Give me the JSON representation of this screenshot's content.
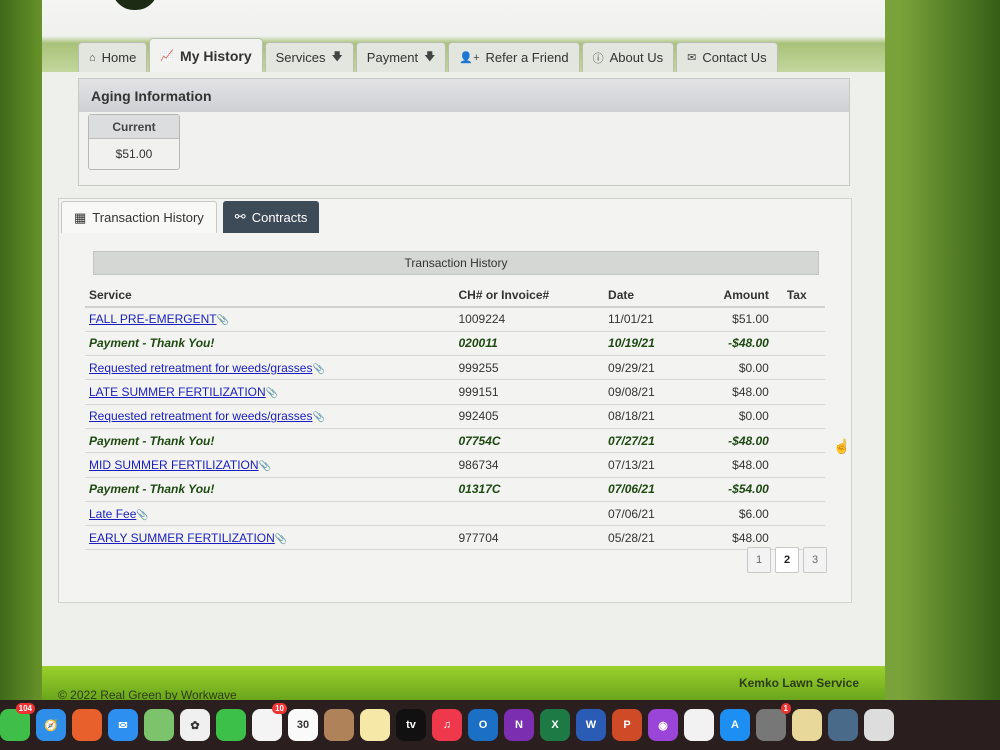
{
  "nav": [
    {
      "label": "Home",
      "icon": "home-icon",
      "glyph": "⌂"
    },
    {
      "label": "My History",
      "icon": "chart-line-icon",
      "glyph": "📈",
      "active": true
    },
    {
      "label": "Services",
      "icon": "arrow-down-icon",
      "glyph": "🡇",
      "after": true
    },
    {
      "label": "Payment",
      "icon": "arrow-down-icon",
      "glyph": "🡇",
      "after": true
    },
    {
      "label": "Refer a Friend",
      "icon": "user-plus-icon",
      "glyph": "👤+"
    },
    {
      "label": "About Us",
      "icon": "info-icon",
      "glyph": "ⓘ"
    },
    {
      "label": "Contact Us",
      "icon": "envelope-icon",
      "glyph": "✉"
    }
  ],
  "aging": {
    "title": "Aging Information",
    "current_label": "Current",
    "current_value": "$51.00"
  },
  "tabs": [
    {
      "label": "Transaction History",
      "icon": "calendar-icon",
      "glyph": "▦"
    },
    {
      "label": "Contracts",
      "icon": "link-icon",
      "glyph": "⚯"
    }
  ],
  "history": {
    "title": "Transaction History",
    "columns": [
      "Service",
      "CH# or Invoice#",
      "Date",
      "Amount",
      "Tax"
    ],
    "rows": [
      {
        "service": "FALL PRE-EMERGENT",
        "invoice": "1009224",
        "date": "11/01/21",
        "amount": "$51.00",
        "tax": "",
        "type": "link"
      },
      {
        "service": "Payment - Thank You!",
        "invoice": "020011",
        "date": "10/19/21",
        "amount": "-$48.00",
        "tax": "",
        "type": "payment"
      },
      {
        "service": "Requested retreatment for weeds/grasses",
        "invoice": "999255",
        "date": "09/29/21",
        "amount": "$0.00",
        "tax": "",
        "type": "link"
      },
      {
        "service": "LATE SUMMER FERTILIZATION",
        "invoice": "999151",
        "date": "09/08/21",
        "amount": "$48.00",
        "tax": "",
        "type": "link"
      },
      {
        "service": "Requested retreatment for weeds/grasses",
        "invoice": "992405",
        "date": "08/18/21",
        "amount": "$0.00",
        "tax": "",
        "type": "link"
      },
      {
        "service": "Payment - Thank You!",
        "invoice": "07754C",
        "date": "07/27/21",
        "amount": "-$48.00",
        "tax": "",
        "type": "payment"
      },
      {
        "service": "MID SUMMER FERTILIZATION",
        "invoice": "986734",
        "date": "07/13/21",
        "amount": "$48.00",
        "tax": "",
        "type": "link"
      },
      {
        "service": "Payment - Thank You!",
        "invoice": "01317C",
        "date": "07/06/21",
        "amount": "-$54.00",
        "tax": "",
        "type": "payment"
      },
      {
        "service": "Late Fee",
        "invoice": "",
        "date": "07/06/21",
        "amount": "$6.00",
        "tax": "",
        "type": "link"
      },
      {
        "service": "EARLY SUMMER FERTILIZATION",
        "invoice": "977704",
        "date": "05/28/21",
        "amount": "$48.00",
        "tax": "",
        "type": "link"
      }
    ],
    "pages": [
      "1",
      "2",
      "3"
    ],
    "current_page": "2"
  },
  "footer": {
    "copyright": "© 2022 Real Green by Workwave",
    "company": "Kemko Lawn Service"
  },
  "dock": [
    {
      "name": "messages",
      "color": "#3fbf4a",
      "badge": "104"
    },
    {
      "name": "safari",
      "color": "#2f8fe8",
      "glyph": "🧭"
    },
    {
      "name": "firefox",
      "color": "#e8602c"
    },
    {
      "name": "mail",
      "color": "#2d8ff0",
      "glyph": "✉"
    },
    {
      "name": "maps",
      "color": "#7cc36b"
    },
    {
      "name": "photos",
      "color": "#f0f0f0",
      "glyph": "✿"
    },
    {
      "name": "facetime",
      "color": "#3cc04a"
    },
    {
      "name": "reminders",
      "color": "#f4f4f4",
      "badge": "10"
    },
    {
      "name": "calendar",
      "color": "#fafafa",
      "glyph": "30"
    },
    {
      "name": "contacts",
      "color": "#b0825a"
    },
    {
      "name": "notes",
      "color": "#f6e9a8"
    },
    {
      "name": "apple-tv",
      "color": "#111",
      "glyph": "tv"
    },
    {
      "name": "music",
      "color": "#f0384d",
      "glyph": "♫"
    },
    {
      "name": "outlook",
      "color": "#1b6fc4",
      "glyph": "O"
    },
    {
      "name": "onenote",
      "color": "#7b2fb0",
      "glyph": "N"
    },
    {
      "name": "excel",
      "color": "#1e7a44",
      "glyph": "X"
    },
    {
      "name": "word",
      "color": "#2b5cb5",
      "glyph": "W"
    },
    {
      "name": "powerpoint",
      "color": "#cf4a26",
      "glyph": "P"
    },
    {
      "name": "podcasts",
      "color": "#9a44d8",
      "glyph": "◉"
    },
    {
      "name": "news",
      "color": "#f2f2f2"
    },
    {
      "name": "app-store",
      "color": "#1d8ff2",
      "glyph": "A"
    },
    {
      "name": "system-preferences",
      "color": "#777",
      "badge": "1"
    },
    {
      "name": "textedit",
      "color": "#e8d89a"
    },
    {
      "name": "quicktime",
      "color": "#4a6a8a"
    },
    {
      "name": "preview",
      "color": "#ddd"
    }
  ]
}
